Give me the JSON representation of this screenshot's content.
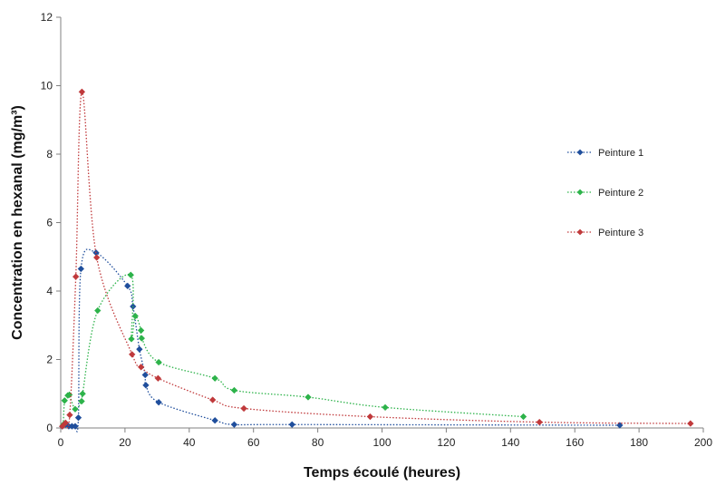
{
  "chart_data": {
    "type": "scatter",
    "title": "",
    "xlabel": "Temps écoulé (heures)",
    "ylabel": "Concentration en hexanal (mg/m³)",
    "xlim": [
      0,
      200
    ],
    "ylim": [
      0,
      12
    ],
    "xticks": [
      0,
      20,
      40,
      60,
      80,
      100,
      120,
      140,
      160,
      180,
      200
    ],
    "yticks": [
      0,
      2,
      4,
      6,
      8,
      10,
      12
    ],
    "grid": false,
    "legend_position": "right",
    "series": [
      {
        "name": "Peinture 1",
        "color": "#1f4e9c",
        "points": [
          [
            0.5,
            0.05
          ],
          [
            1.5,
            0.1
          ],
          [
            2.5,
            0.05
          ],
          [
            3.5,
            0.05
          ],
          [
            4.5,
            0.05
          ],
          [
            5.5,
            0.3
          ],
          [
            6.3,
            4.65
          ],
          [
            11,
            5.12
          ],
          [
            20.8,
            4.15
          ],
          [
            22.5,
            3.55
          ],
          [
            24.5,
            2.3
          ],
          [
            26.3,
            1.55
          ],
          [
            26.5,
            1.25
          ],
          [
            30.5,
            0.75
          ],
          [
            48,
            0.22
          ],
          [
            54,
            0.1
          ],
          [
            72,
            0.1
          ],
          [
            174,
            0.08
          ]
        ]
      },
      {
        "name": "Peinture 2",
        "color": "#2db34a",
        "points": [
          [
            0.8,
            0.1
          ],
          [
            1.2,
            0.8
          ],
          [
            2.2,
            0.95
          ],
          [
            2.7,
            0.97
          ],
          [
            4.5,
            0.55
          ],
          [
            6.5,
            0.78
          ],
          [
            6.8,
            1.0
          ],
          [
            11.5,
            3.43
          ],
          [
            21.8,
            4.47
          ],
          [
            22.0,
            2.6
          ],
          [
            23.2,
            3.27
          ],
          [
            25.0,
            2.85
          ],
          [
            25.2,
            2.62
          ],
          [
            30.5,
            1.92
          ],
          [
            48.0,
            1.45
          ],
          [
            54.0,
            1.1
          ],
          [
            77.0,
            0.9
          ],
          [
            101.0,
            0.6
          ],
          [
            144.0,
            0.33
          ]
        ]
      },
      {
        "name": "Peinture 3",
        "color": "#c0393b",
        "points": [
          [
            0.5,
            0.05
          ],
          [
            1.5,
            0.15
          ],
          [
            2.8,
            0.38
          ],
          [
            4.7,
            4.42
          ],
          [
            6.6,
            9.82
          ],
          [
            11.2,
            4.98
          ],
          [
            22.2,
            2.15
          ],
          [
            25.0,
            1.78
          ],
          [
            30.3,
            1.45
          ],
          [
            47.3,
            0.82
          ],
          [
            57.0,
            0.57
          ],
          [
            96.3,
            0.33
          ],
          [
            149.0,
            0.17
          ],
          [
            196.0,
            0.13
          ]
        ]
      }
    ]
  }
}
